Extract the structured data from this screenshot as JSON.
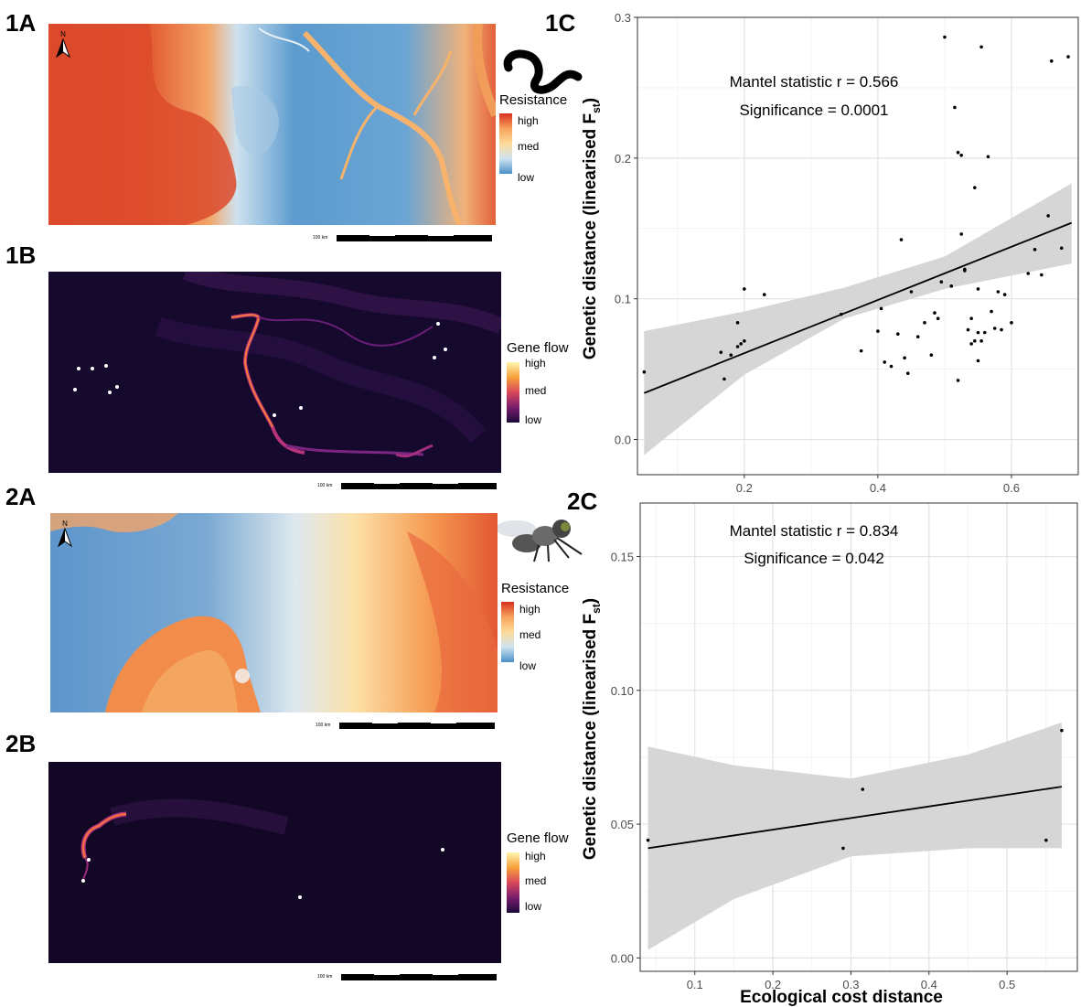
{
  "panels": {
    "p1A": "1A",
    "p1B": "1B",
    "p1C": "1C",
    "p2A": "2A",
    "p2B": "2B",
    "p2C": "2C"
  },
  "legends": {
    "resistance": {
      "title": "Resistance",
      "high": "high",
      "med": "med",
      "low": "low"
    },
    "geneflow": {
      "title": "Gene flow",
      "high": "high",
      "med": "med",
      "low": "low"
    }
  },
  "scalebar_label": "100 km",
  "compass_label": "N",
  "colors": {
    "resistance_high": "#d7301f",
    "resistance_med": "#fddb9a",
    "resistance_low": "#4a90c8",
    "geneflow_high": "#fff7b0",
    "geneflow_med": "#f48a2b",
    "geneflow_low": "#1a0a3a",
    "ribbon": "#d6d6d6"
  },
  "icons": [
    "worm-icon",
    "fly-icon",
    "north-arrow-icon"
  ],
  "chart_data": [
    {
      "type": "scatter",
      "panel": "1C",
      "xlabel": "",
      "ylabel": "Genetic distance (linearised F",
      "ylabel_sub": "st",
      "ylabel_close": ")",
      "xlim": [
        0.04,
        0.7
      ],
      "ylim": [
        -0.025,
        0.3
      ],
      "xticks": [
        0.2,
        0.4,
        0.6
      ],
      "yticks": [
        0.0,
        0.1,
        0.2,
        0.3
      ],
      "xtick_labels": [
        "0.2",
        "0.4",
        "0.6"
      ],
      "ytick_labels": [
        "0.0",
        "0.1",
        "0.2",
        "0.3"
      ],
      "annotations": [
        "Mantel statistic r = 0.566",
        "Significance = 0.0001"
      ],
      "fit": {
        "x": [
          0.05,
          0.69
        ],
        "y": [
          0.033,
          0.154
        ]
      },
      "ci": {
        "x": [
          0.05,
          0.2,
          0.35,
          0.5,
          0.69
        ],
        "lower": [
          -0.011,
          0.046,
          0.086,
          0.107,
          0.125
        ],
        "upper": [
          0.077,
          0.091,
          0.108,
          0.13,
          0.182
        ]
      },
      "points": {
        "x": [
          0.05,
          0.165,
          0.17,
          0.18,
          0.19,
          0.19,
          0.195,
          0.2,
          0.2,
          0.23,
          0.345,
          0.375,
          0.4,
          0.405,
          0.41,
          0.42,
          0.43,
          0.435,
          0.44,
          0.445,
          0.45,
          0.46,
          0.47,
          0.48,
          0.485,
          0.49,
          0.495,
          0.5,
          0.51,
          0.515,
          0.52,
          0.52,
          0.525,
          0.525,
          0.53,
          0.53,
          0.535,
          0.54,
          0.54,
          0.545,
          0.545,
          0.55,
          0.55,
          0.55,
          0.555,
          0.555,
          0.56,
          0.565,
          0.57,
          0.575,
          0.58,
          0.585,
          0.59,
          0.6,
          0.625,
          0.635,
          0.645,
          0.655,
          0.66,
          0.675,
          0.685
        ],
        "y": [
          0.048,
          0.062,
          0.043,
          0.06,
          0.083,
          0.066,
          0.068,
          0.107,
          0.07,
          0.103,
          0.089,
          0.063,
          0.077,
          0.093,
          0.055,
          0.052,
          0.075,
          0.142,
          0.058,
          0.047,
          0.105,
          0.073,
          0.083,
          0.06,
          0.09,
          0.086,
          0.112,
          0.286,
          0.109,
          0.236,
          0.204,
          0.042,
          0.202,
          0.146,
          0.12,
          0.121,
          0.078,
          0.086,
          0.068,
          0.07,
          0.179,
          0.107,
          0.076,
          0.056,
          0.279,
          0.07,
          0.076,
          0.201,
          0.091,
          0.079,
          0.105,
          0.078,
          0.103,
          0.083,
          0.118,
          0.135,
          0.117,
          0.159,
          0.269,
          0.136,
          0.272
        ]
      }
    },
    {
      "type": "scatter",
      "panel": "2C",
      "xlabel": "Ecological cost distance",
      "ylabel": "Genetic distance (linearised F",
      "ylabel_sub": "st",
      "ylabel_close": ")",
      "xlim": [
        0.03,
        0.59
      ],
      "ylim": [
        -0.005,
        0.17
      ],
      "xticks": [
        0.1,
        0.2,
        0.3,
        0.4,
        0.5
      ],
      "yticks": [
        0.0,
        0.05,
        0.1,
        0.15
      ],
      "xtick_labels": [
        "0.1",
        "0.2",
        "0.3",
        "0.4",
        "0.5"
      ],
      "ytick_labels": [
        "0.00",
        "0.05",
        "0.10",
        "0.15"
      ],
      "annotations": [
        "Mantel statistic r = 0.834",
        "Significance = 0.042"
      ],
      "fit": {
        "x": [
          0.04,
          0.57
        ],
        "y": [
          0.041,
          0.064
        ]
      },
      "ci": {
        "x": [
          0.04,
          0.15,
          0.3,
          0.45,
          0.57
        ],
        "lower": [
          0.003,
          0.022,
          0.038,
          0.041,
          0.041
        ],
        "upper": [
          0.079,
          0.072,
          0.067,
          0.076,
          0.088
        ]
      },
      "points": {
        "x": [
          0.04,
          0.29,
          0.315,
          0.55,
          0.57
        ],
        "y": [
          0.044,
          0.041,
          0.063,
          0.044,
          0.085
        ]
      }
    }
  ]
}
